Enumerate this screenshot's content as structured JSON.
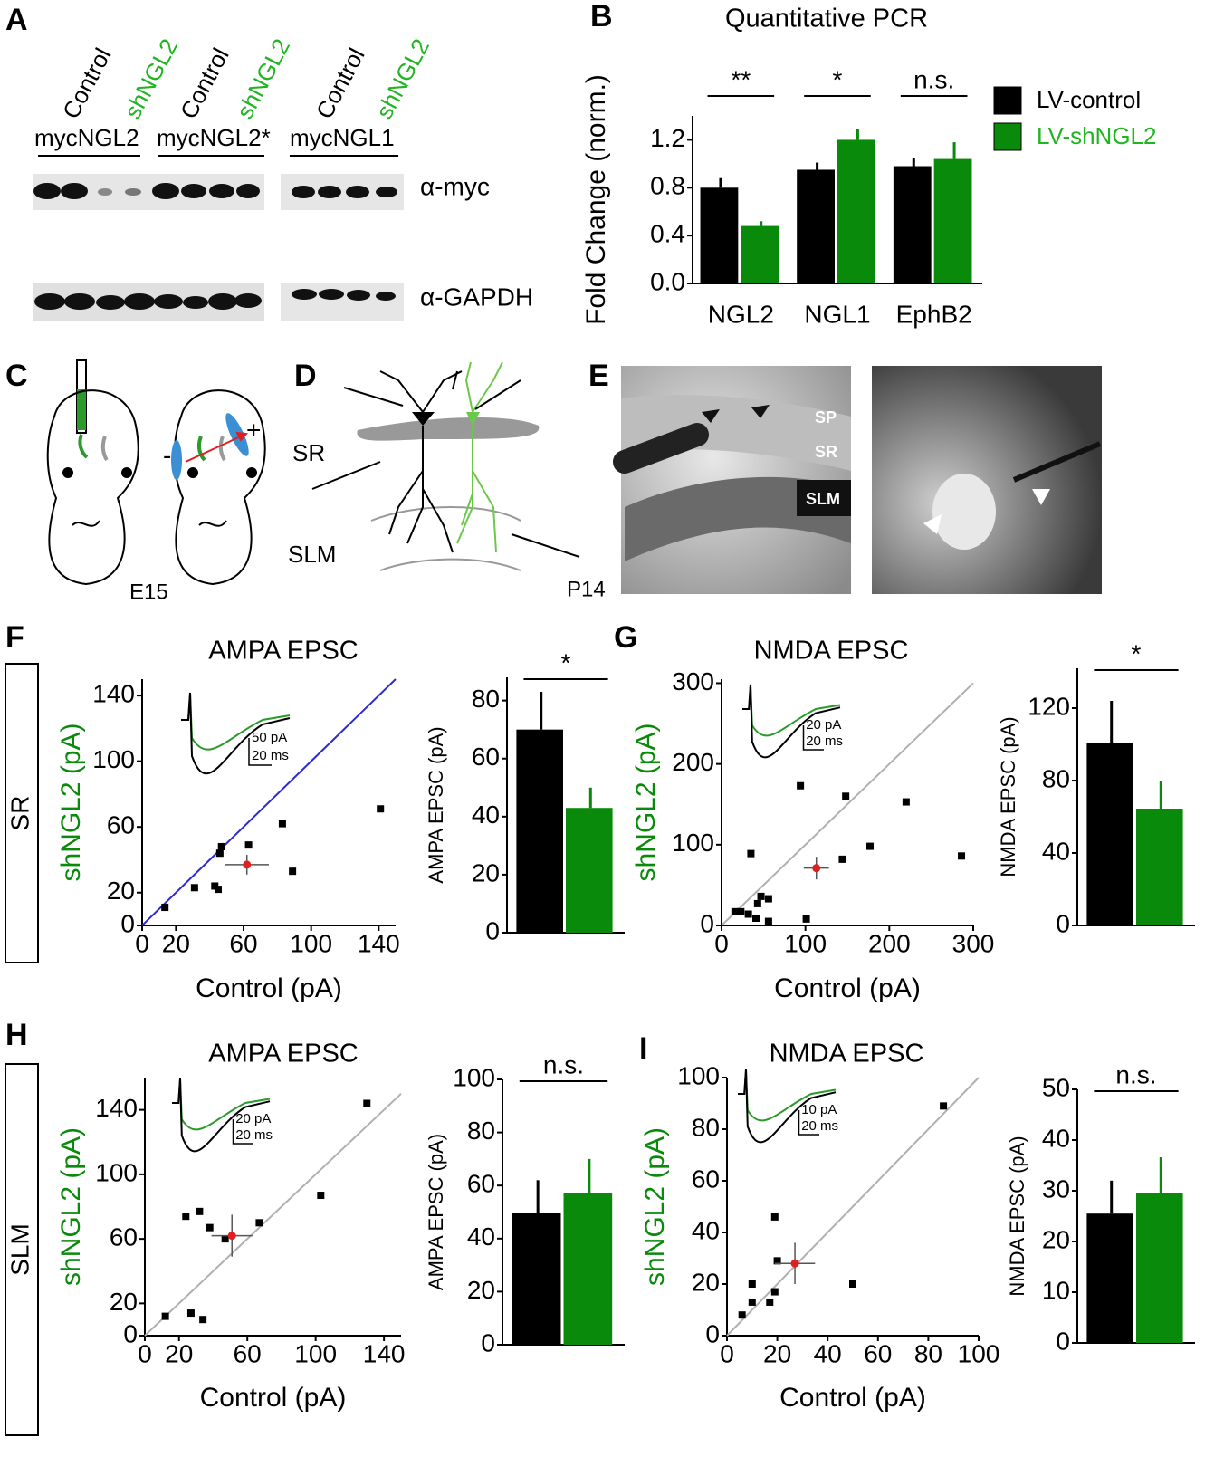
{
  "figure": {
    "panel_labels": [
      "A",
      "B",
      "C",
      "D",
      "E",
      "F",
      "G",
      "H",
      "I"
    ],
    "blot": {
      "lanes": [
        "Control",
        "shNGL2",
        "Control",
        "shNGL2",
        "Control",
        "shNGL2"
      ],
      "constructs": [
        "mycNGL2",
        "mycNGL2*",
        "mycNGL1"
      ],
      "antibodies": [
        "α-myc",
        "α-GAPDH"
      ]
    },
    "injection": {
      "age": "E15",
      "minus": "-",
      "plus": "+"
    },
    "schematic": {
      "layers": [
        "SR",
        "SLM"
      ],
      "age": "P14"
    },
    "slice": {
      "layers": [
        "SP",
        "SR",
        "SLM"
      ]
    },
    "rows": [
      "SR",
      "SLM"
    ]
  },
  "chart_data": [
    {
      "type": "bar",
      "title": "Quantitative PCR",
      "ylabel": "Fold Change  (norm.)",
      "categories": [
        "NGL2",
        "NGL1",
        "EphB2"
      ],
      "series": [
        {
          "name": "LV-control",
          "color": "#000000",
          "values": [
            0.8,
            0.95,
            0.98
          ],
          "errors": [
            0.08,
            0.06,
            0.07
          ]
        },
        {
          "name": "LV-shNGL2",
          "color": "#0a8a0a",
          "values": [
            0.48,
            1.2,
            1.04
          ],
          "errors": [
            0.04,
            0.09,
            0.14
          ]
        }
      ],
      "ylim": [
        0,
        1.4
      ],
      "yticks": [
        {
          "value": 0,
          "label": "0.0"
        },
        0.4,
        0.8,
        1.2
      ],
      "significance": [
        "**",
        "*",
        "n.s."
      ],
      "legend": "right"
    },
    {
      "type": "scatter",
      "title": "AMPA EPSC",
      "xlabel": "Control (pA)",
      "ylabel": "shNGL2 (pA)",
      "ylabel_color": "#0a8a0a",
      "xlim": [
        0,
        150
      ],
      "ylim": [
        0,
        150
      ],
      "xticks": [
        0,
        20,
        60,
        100,
        140
      ],
      "yticks": [
        0,
        20,
        60,
        100,
        140
      ],
      "identity_color": "#2b2bd6",
      "scale_labels": [
        "50 pA",
        "20 ms"
      ],
      "series": [
        {
          "color": "#000000",
          "x": [
            13.5,
            31,
            43,
            45,
            46,
            47,
            63,
            83,
            89,
            141
          ],
          "values": [
            11,
            23,
            24,
            22,
            44,
            48,
            49,
            62,
            33,
            71
          ]
        },
        {
          "color": "#e02020",
          "x": [
            62
          ],
          "values": [
            37
          ],
          "x_errors": [
            13
          ],
          "errors": [
            6
          ]
        }
      ]
    },
    {
      "type": "bar",
      "ylabel": "AMPA EPSC (pA)",
      "categories": [
        null
      ],
      "series": [
        {
          "color": "#000000",
          "values": [
            70
          ],
          "errors": [
            13
          ]
        },
        {
          "color": "#0a8a0a",
          "values": [
            43
          ],
          "errors": [
            7
          ]
        }
      ],
      "ylim": [
        0,
        88
      ],
      "yticks": [
        0,
        20,
        40,
        60,
        80
      ],
      "significance": [
        "*"
      ]
    },
    {
      "type": "scatter",
      "title": "NMDA EPSC",
      "xlabel": "Control (pA)",
      "ylabel": "shNGL2 (pA)",
      "ylabel_color": "#0a8a0a",
      "xlim": [
        0,
        300
      ],
      "ylim": [
        0,
        305
      ],
      "xticks": [
        0,
        100,
        200,
        300
      ],
      "yticks": [
        0,
        100,
        200,
        300
      ],
      "identity_color": "#b0b0b0",
      "scale_labels": [
        "20 pA",
        "20 ms"
      ],
      "series": [
        {
          "color": "#000000",
          "x": [
            16,
            23,
            32,
            41,
            56,
            43,
            47,
            56,
            35,
            94,
            101,
            144,
            148,
            177,
            220,
            286
          ],
          "values": [
            17,
            17,
            14,
            9,
            5,
            27,
            36,
            33,
            89,
            173,
            8,
            82,
            160,
            98,
            153,
            86
          ]
        },
        {
          "color": "#e02020",
          "x": [
            113
          ],
          "values": [
            71
          ],
          "x_errors": [
            15
          ],
          "errors": [
            14
          ]
        }
      ]
    },
    {
      "type": "bar",
      "ylabel": "NMDA EPSC (pA)",
      "categories": [
        null
      ],
      "series": [
        {
          "color": "#000000",
          "values": [
            101
          ],
          "errors": [
            23
          ]
        },
        {
          "color": "#0a8a0a",
          "values": [
            64.5
          ],
          "errors": [
            15
          ]
        }
      ],
      "ylim": [
        0,
        142
      ],
      "yticks": [
        0,
        40,
        80,
        120
      ],
      "significance": [
        "*"
      ]
    },
    {
      "type": "scatter",
      "title": "AMPA EPSC",
      "xlabel": "Control (pA)",
      "ylabel": "shNGL2 (pA)",
      "ylabel_color": "#0a8a0a",
      "xlim": [
        0,
        150
      ],
      "ylim": [
        0,
        160
      ],
      "xticks": [
        0,
        20,
        60,
        100,
        140
      ],
      "yticks": [
        0,
        20,
        60,
        100,
        140
      ],
      "identity_color": "#b0b0b0",
      "scale_labels": [
        "20 pA",
        "20 ms"
      ],
      "series": [
        {
          "color": "#000000",
          "x": [
            12,
            27,
            34,
            24,
            32,
            38,
            47,
            67,
            103,
            130
          ],
          "values": [
            12,
            14,
            10,
            74,
            77,
            67,
            60,
            70,
            87,
            144
          ]
        },
        {
          "color": "#e02020",
          "x": [
            51
          ],
          "values": [
            62
          ],
          "x_errors": [
            12
          ],
          "errors": [
            13
          ]
        }
      ]
    },
    {
      "type": "bar",
      "ylabel": "AMPA EPSC (pA)",
      "categories": [
        null
      ],
      "series": [
        {
          "color": "#000000",
          "values": [
            49.5
          ],
          "errors": [
            12.5
          ]
        },
        {
          "color": "#0a8a0a",
          "values": [
            57
          ],
          "errors": [
            13
          ]
        }
      ],
      "ylim": [
        0,
        100
      ],
      "yticks": [
        0,
        20,
        40,
        60,
        80,
        100
      ],
      "significance": [
        "n.s."
      ]
    },
    {
      "type": "scatter",
      "title": "NMDA EPSC",
      "xlabel": "Control (pA)",
      "ylabel": "shNGL2 (pA)",
      "ylabel_color": "#0a8a0a",
      "xlim": [
        0,
        100
      ],
      "ylim": [
        0,
        100
      ],
      "xticks": [
        0,
        20,
        40,
        60,
        80,
        100
      ],
      "yticks": [
        0,
        20,
        40,
        60,
        80,
        100
      ],
      "identity_color": "#b0b0b0",
      "scale_labels": [
        "10 pA",
        "20 ms"
      ],
      "series": [
        {
          "color": "#000000",
          "x": [
            6,
            10,
            10,
            17,
            19,
            19,
            20,
            50,
            86
          ],
          "values": [
            8,
            20,
            13,
            13,
            17,
            46,
            29,
            20,
            89
          ]
        },
        {
          "color": "#e02020",
          "x": [
            27
          ],
          "values": [
            28
          ],
          "x_errors": [
            8
          ],
          "errors": [
            8
          ]
        }
      ]
    },
    {
      "type": "bar",
      "ylabel": "NMDA EPSC (pA)",
      "categories": [
        null
      ],
      "series": [
        {
          "color": "#000000",
          "values": [
            25.5
          ],
          "errors": [
            6.5
          ]
        },
        {
          "color": "#0a8a0a",
          "values": [
            29.6
          ],
          "errors": [
            7
          ]
        }
      ],
      "ylim": [
        0,
        50
      ],
      "yticks": [
        0,
        10,
        20,
        30,
        40,
        50
      ],
      "significance": [
        "n.s."
      ]
    }
  ]
}
